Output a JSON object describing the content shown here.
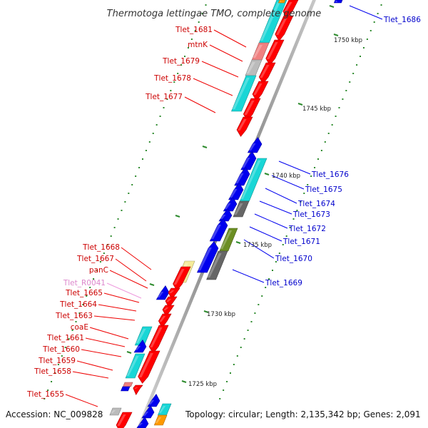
{
  "title": "Thermotoga lettingae TMO, complete genome",
  "footer": {
    "accession": "Accession: NC_009828",
    "topology": "Topology: circular; Length: 2,135,342 bp; Genes: 2,091"
  },
  "colors": {
    "forward_gene": "#ff0000",
    "reverse_gene": "#0000ee",
    "cds_light": "#19d6d6",
    "cds_dark": "#666666",
    "cds_pink": "#f08080",
    "cds_light_gray": "#bbbbbb",
    "cds_olive": "#6b8e23",
    "cds_yellow": "#f5eb9a",
    "cds_orange": "#ff9900",
    "rna_label": "#dd88cc",
    "backbone": "#888888"
  },
  "kbp_ticks": [
    "1725 kbp",
    "1730 kbp",
    "1735 kbp",
    "1740 kbp",
    "1745 kbp",
    "1750 kbp"
  ],
  "forward_labels": [
    "Tlet_1681",
    "mtnK",
    "Tlet_1679",
    "Tlet_1678",
    "Tlet_1677",
    "Tlet_1668",
    "Tlet_1667",
    "panC",
    "Tlet_R0041",
    "Tlet_1665",
    "Tlet_1664",
    "Tlet_1663",
    "coaE",
    "Tlet_1661",
    "Tlet_1660",
    "Tlet_1659",
    "Tlet_1658",
    "Tlet_1655"
  ],
  "reverse_labels": [
    "Tlet_1686",
    "Tlet_1676",
    "Tlet_1675",
    "Tlet_1674",
    "Tlet_1673",
    "Tlet_1672",
    "Tlet_1671",
    "Tlet_1670",
    "Tlet_1669"
  ]
}
